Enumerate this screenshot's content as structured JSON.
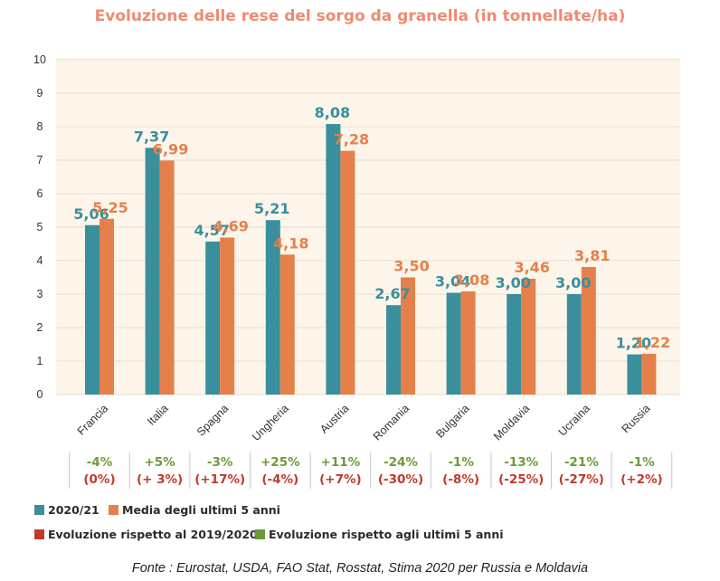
{
  "title": "Evoluzione delle rese del sorgo da granella (in tonnellate/ha)",
  "colors": {
    "title": "#f08a70",
    "series1": "#3a8f9c",
    "series2": "#e5804a",
    "plot_bg": "#fdf5ea",
    "grid": "#ebe3d8",
    "change_year": "#c0392b",
    "change_5y": "#6b9b37",
    "axis_text": "#333333"
  },
  "legend": {
    "series1": "2020/21",
    "series2": "Media degli ultimi 5 anni",
    "change_year": "Evoluzione rispetto al 2019/2020",
    "change_5y": "Evoluzione rispetto agli ultimi 5 anni"
  },
  "source": "Fonte : Eurostat, USDA, FAO Stat, Rosstat, Stima 2020 per Russia e Moldavia",
  "chart_data": {
    "type": "bar",
    "categories": [
      "Francia",
      "Italia",
      "Spagna",
      "Ungheria",
      "Austria",
      "Romania",
      "Bulgaria",
      "Moldavia",
      "Ucraina",
      "Russia"
    ],
    "series": [
      {
        "name": "2020/21",
        "values": [
          5.06,
          7.37,
          4.57,
          5.21,
          8.08,
          2.67,
          3.04,
          3.0,
          3.0,
          1.2
        ],
        "labels": [
          "5,06",
          "7,37",
          "4,57",
          "5,21",
          "8,08",
          "2,67",
          "3,04",
          "3,00",
          "3,00",
          "1,20"
        ]
      },
      {
        "name": "Media degli ultimi 5 anni",
        "values": [
          5.25,
          6.99,
          4.69,
          4.18,
          7.28,
          3.5,
          3.08,
          3.46,
          3.81,
          1.22
        ],
        "labels": [
          "5,25",
          "6,99",
          "4,69",
          "4,18",
          "7,28",
          "3,50",
          "3,08",
          "3,46",
          "3,81",
          "1,22"
        ]
      }
    ],
    "yticks": [
      "0",
      "1",
      "2",
      "3",
      "4",
      "5",
      "6",
      "7",
      "8",
      "9",
      "10"
    ],
    "ylim": [
      0,
      10
    ],
    "grid": true,
    "changes_5y": [
      "-4%",
      "+5%",
      "-3%",
      "+25%",
      "+11%",
      "-24%",
      "-1%",
      "-13%",
      "-21%",
      "-1%"
    ],
    "changes_year": [
      "(0%)",
      "(+ 3%)",
      "(+17%)",
      "(-4%)",
      "(+7%)",
      "(-30%)",
      "(-8%)",
      "(-25%)",
      "(-27%)",
      "(+2%)"
    ]
  }
}
